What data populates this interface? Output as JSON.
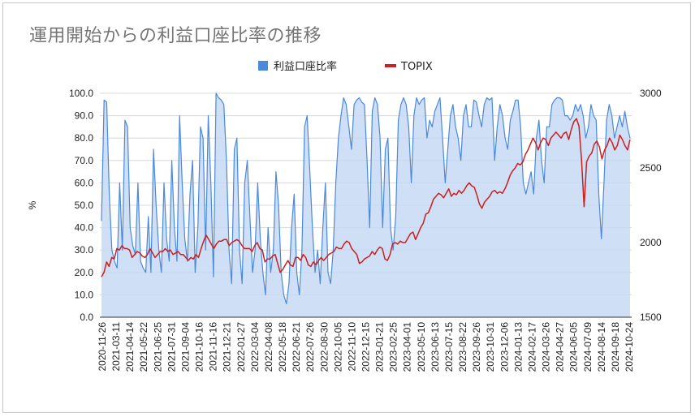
{
  "chart_data": {
    "type": "area",
    "title": "運用開始からの利益口座比率の推移",
    "ylabel": "%",
    "y2label": "",
    "ylim": [
      0,
      100
    ],
    "y2lim": [
      1500,
      3000
    ],
    "y_ticks": [
      "0.0",
      "10.0",
      "20.0",
      "30.0",
      "40.0",
      "50.0",
      "60.0",
      "70.0",
      "80.0",
      "90.0",
      "100.0"
    ],
    "y2_ticks": [
      "1500",
      "2000",
      "2500",
      "3000"
    ],
    "x_ticks": [
      "2020-11-26",
      "2021-03-11",
      "2021-04-14",
      "2021-05-22",
      "2021-06-25",
      "2021-07-31",
      "2021-09-04",
      "2021-10-16",
      "2021-11-16",
      "2021-12-21",
      "2022-01-27",
      "2022-03-04",
      "2022-04-08",
      "2022-05-18",
      "2022-06-21",
      "2022-07-26",
      "2022-08-30",
      "2022-10-05",
      "2022-11-10",
      "2022-12-15",
      "2023-01-21",
      "2023-02-25",
      "2023-04-01",
      "2023-05-10",
      "2023-06-13",
      "2023-07-15",
      "2023-08-22",
      "2023-09-26",
      "2023-10-31",
      "2023-12-06",
      "2024-01-13",
      "2024-02-17",
      "2024-03-26",
      "2024-04-27",
      "2024-06-05",
      "2024-07-09",
      "2024-08-14",
      "2024-09-18",
      "2024-10-24"
    ],
    "legend_position": "top",
    "grid": true,
    "colors": {
      "ratio_line": "#4a89dc",
      "ratio_fill": "#c6d9f5",
      "topix": "#cc1f1f",
      "grid": "#d8d8d8"
    },
    "series": [
      {
        "name": "利益口座比率",
        "axis": "left",
        "values": [
          43,
          97,
          96,
          55,
          30,
          25,
          22,
          60,
          30,
          88,
          85,
          40,
          32,
          28,
          60,
          25,
          22,
          20,
          45,
          20,
          75,
          50,
          30,
          20,
          60,
          35,
          25,
          70,
          40,
          25,
          90,
          60,
          35,
          25,
          55,
          70,
          20,
          40,
          85,
          80,
          30,
          90,
          60,
          18,
          100,
          98,
          97,
          95,
          70,
          30,
          15,
          75,
          80,
          30,
          15,
          60,
          70,
          45,
          20,
          30,
          60,
          35,
          20,
          10,
          40,
          20,
          30,
          65,
          50,
          20,
          10,
          6,
          15,
          40,
          55,
          20,
          10,
          30,
          85,
          90,
          65,
          40,
          20,
          30,
          15,
          40,
          60,
          20,
          15,
          30,
          60,
          80,
          90,
          98,
          95,
          85,
          75,
          95,
          97,
          98,
          96,
          95,
          70,
          40,
          92,
          98,
          95,
          80,
          40,
          75,
          80,
          40,
          30,
          45,
          88,
          95,
          98,
          95,
          85,
          60,
          90,
          98,
          95,
          97,
          98,
          80,
          88,
          85,
          92,
          95,
          98,
          80,
          60,
          75,
          90,
          95,
          85,
          80,
          70,
          90,
          95,
          85,
          85,
          97,
          96,
          90,
          85,
          95,
          98,
          97,
          98,
          70,
          85,
          95,
          90,
          80,
          75,
          88,
          92,
          97,
          97,
          85,
          60,
          55,
          60,
          65,
          55,
          80,
          88,
          70,
          60,
          85,
          85,
          95,
          97,
          98,
          98,
          97,
          90,
          90,
          88,
          90,
          95,
          92,
          95,
          90,
          80,
          85,
          95,
          90,
          88,
          55,
          35,
          60,
          88,
          95,
          90,
          80,
          85,
          90,
          85,
          92,
          85,
          80
        ]
      },
      {
        "name": "TOPIX",
        "axis": "right",
        "values": [
          1770,
          1800,
          1870,
          1840,
          1900,
          1890,
          1960,
          1950,
          1980,
          1960,
          1960,
          1950,
          1900,
          1920,
          1940,
          1930,
          1910,
          1900,
          1920,
          1960,
          1930,
          1900,
          1920,
          1940,
          1940,
          1960,
          1940,
          1950,
          1920,
          1930,
          1940,
          1920,
          1920,
          1900,
          1880,
          1900,
          1890,
          1920,
          1900,
          1960,
          2010,
          2050,
          2020,
          1990,
          1960,
          1990,
          2010,
          2010,
          2020,
          2020,
          1980,
          2000,
          2010,
          2020,
          2010,
          1980,
          1960,
          1960,
          1960,
          1940,
          1980,
          2000,
          1960,
          1950,
          1870,
          1890,
          1890,
          1910,
          1920,
          1860,
          1800,
          1820,
          1850,
          1880,
          1850,
          1840,
          1900,
          1900,
          1880,
          1920,
          1900,
          1850,
          1840,
          1870,
          1850,
          1880,
          1900,
          1880,
          1900,
          1920,
          1930,
          1940,
          1970,
          1960,
          1960,
          1990,
          2010,
          2000,
          1960,
          1940,
          1920,
          1860,
          1870,
          1890,
          1900,
          1910,
          1940,
          1920,
          1950,
          1970,
          1960,
          1890,
          1880,
          1920,
          1990,
          2000,
          1990,
          2010,
          2000,
          2000,
          2030,
          2060,
          2070,
          2020,
          2060,
          2100,
          2130,
          2190,
          2200,
          2240,
          2290,
          2310,
          2330,
          2320,
          2300,
          2330,
          2360,
          2310,
          2330,
          2320,
          2350,
          2330,
          2350,
          2380,
          2400,
          2380,
          2370,
          2320,
          2260,
          2230,
          2270,
          2290,
          2310,
          2340,
          2350,
          2330,
          2340,
          2330,
          2360,
          2400,
          2450,
          2480,
          2500,
          2530,
          2520,
          2540,
          2590,
          2620,
          2660,
          2700,
          2670,
          2620,
          2670,
          2700,
          2690,
          2650,
          2700,
          2720,
          2740,
          2720,
          2700,
          2730,
          2740,
          2690,
          2760,
          2810,
          2830,
          2780,
          2560,
          2240,
          2540,
          2580,
          2600,
          2660,
          2680,
          2640,
          2560,
          2620,
          2650,
          2700,
          2670,
          2620,
          2650,
          2720,
          2690,
          2650,
          2620,
          2690
        ]
      }
    ]
  }
}
